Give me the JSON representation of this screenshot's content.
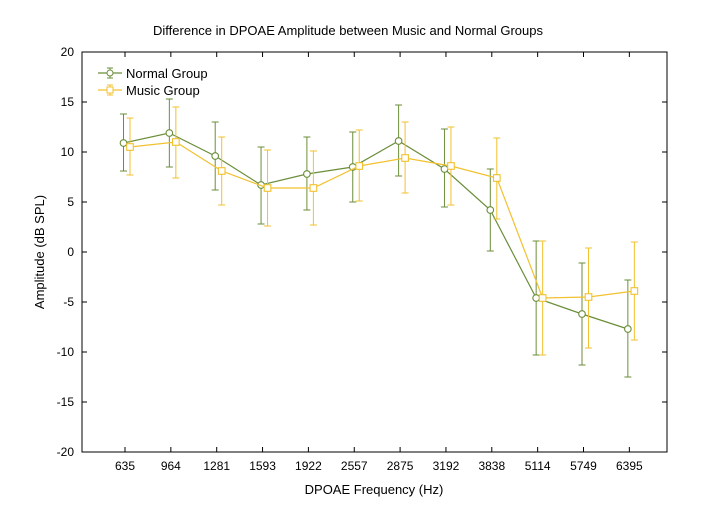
{
  "chart_data": {
    "type": "line",
    "title": "Difference in DPOAE Amplitude between Music and Normal Groups",
    "xlabel": "DPOAE Frequency (Hz)",
    "ylabel": "Amplitude (dB SPL)",
    "categories": [
      "635",
      "964",
      "1281",
      "1593",
      "1922",
      "2557",
      "2875",
      "3192",
      "3838",
      "5114",
      "5749",
      "6395"
    ],
    "ylim": [
      -20,
      20
    ],
    "yticks": [
      -20,
      -15,
      -10,
      -5,
      0,
      5,
      10,
      15,
      20
    ],
    "grid": false,
    "legend_position": "top-left",
    "series": [
      {
        "name": "Normal Group",
        "color": "#6b8e3a",
        "marker": "circle",
        "values": [
          10.9,
          11.9,
          9.6,
          6.7,
          7.8,
          8.5,
          11.1,
          8.3,
          4.2,
          -4.6,
          -6.2,
          -7.7
        ],
        "err_lower": [
          8.1,
          8.5,
          6.2,
          2.8,
          4.2,
          5.0,
          7.6,
          4.5,
          0.1,
          -10.3,
          -11.3,
          -12.5
        ],
        "err_upper": [
          13.8,
          15.3,
          13.0,
          10.5,
          11.5,
          12.0,
          14.7,
          12.3,
          8.3,
          1.1,
          -1.1,
          -2.8
        ]
      },
      {
        "name": "Music Group",
        "color": "#f2c12e",
        "marker": "square",
        "values": [
          10.5,
          11.0,
          8.1,
          6.4,
          6.4,
          8.6,
          9.4,
          8.6,
          7.4,
          -4.6,
          -4.5,
          -3.9
        ],
        "err_lower": [
          7.7,
          7.4,
          4.7,
          2.6,
          2.7,
          5.1,
          5.9,
          4.7,
          3.3,
          -10.3,
          -9.6,
          -8.8
        ],
        "err_upper": [
          13.4,
          14.5,
          11.5,
          10.2,
          10.1,
          12.2,
          13.0,
          12.5,
          11.4,
          1.1,
          0.4,
          1.0
        ]
      }
    ]
  }
}
